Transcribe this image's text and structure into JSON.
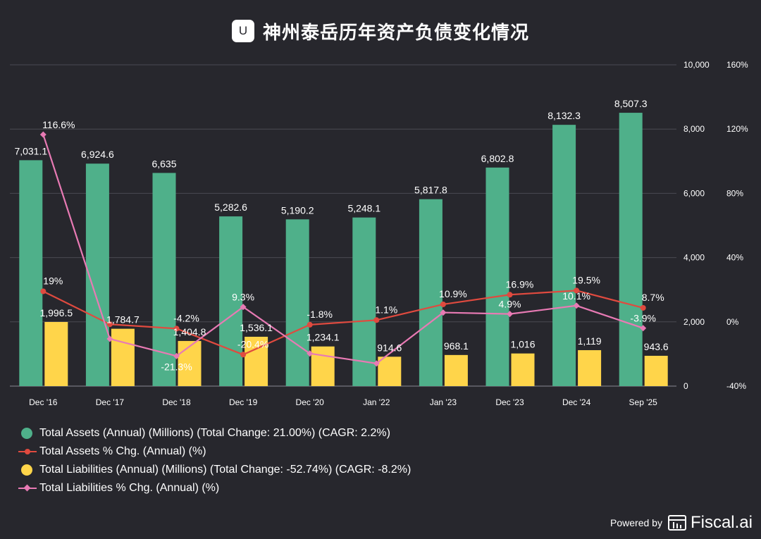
{
  "header": {
    "logo_letter": "U",
    "title": "神州泰岳历年资产负债变化情况"
  },
  "colors": {
    "background": "#27272d",
    "assets_bar": "#4fb08a",
    "liabilities_bar": "#ffd54a",
    "assets_chg_line": "#e04a3f",
    "liabilities_chg_line": "#e87ab4",
    "grid": "#4a4a52"
  },
  "chart_data": {
    "type": "bar",
    "title": "神州泰岳历年资产负债变化情况",
    "categories": [
      "Dec '16",
      "Dec '17",
      "Dec '18",
      "Dec '19",
      "Dec '20",
      "Jan '22",
      "Jan '23",
      "Dec '23",
      "Dec '24",
      "Sep '25"
    ],
    "left_axis": {
      "ylim": [
        0,
        10000
      ],
      "ticks": [
        0,
        2000,
        4000,
        6000,
        8000,
        10000
      ],
      "tick_labels": [
        "0",
        "2,000",
        "4,000",
        "6,000",
        "8,000",
        "10,000"
      ]
    },
    "right_axis": {
      "ylim": [
        -40,
        160
      ],
      "ticks": [
        -40,
        0,
        40,
        80,
        120,
        160
      ],
      "tick_labels": [
        "-40%",
        "0%",
        "40%",
        "80%",
        "120%",
        "160%"
      ]
    },
    "series": [
      {
        "name": "Total Assets (Annual) (Millions) (Total Change: 21.00%) (CAGR: 2.2%)",
        "kind": "bar",
        "axis": "left",
        "color": "#4fb08a",
        "values": [
          7031.1,
          6924.6,
          6635,
          5282.6,
          5190.2,
          5248.1,
          5817.8,
          6802.8,
          8132.3,
          8507.3
        ],
        "labels": [
          "7,031.1",
          "6,924.6",
          "6,635",
          "5,282.6",
          "5,190.2",
          "5,248.1",
          "5,817.8",
          "6,802.8",
          "8,132.3",
          "8,507.3"
        ]
      },
      {
        "name": "Total Assets % Chg. (Annual) (%)",
        "kind": "line",
        "marker": "circle",
        "axis": "right",
        "color": "#e04a3f",
        "values": [
          19,
          -1.5,
          -4.2,
          -20.4,
          -1.8,
          1.1,
          10.9,
          16.9,
          19.5,
          8.7
        ],
        "labels": [
          "19%",
          "",
          "-4.2%",
          "-20.4%",
          "-1.8%",
          "1.1%",
          "10.9%",
          "16.9%",
          "19.5%",
          "8.7%"
        ]
      },
      {
        "name": "Total Liabilities (Annual) (Millions) (Total Change: -52.74%) (CAGR: -8.2%)",
        "kind": "bar",
        "axis": "left",
        "color": "#ffd54a",
        "values": [
          1996.5,
          1784.7,
          1404.8,
          1536.1,
          1234.1,
          914.6,
          968.1,
          1016,
          1119,
          943.6
        ],
        "labels": [
          "1,996.5",
          "1,784.7",
          "1,404.8",
          "1,536.1",
          "1,234.1",
          "914.6",
          "968.1",
          "1,016",
          "1,119",
          "943.6"
        ]
      },
      {
        "name": "Total Liabilities % Chg. (Annual) (%)",
        "kind": "line",
        "marker": "diamond",
        "axis": "right",
        "color": "#e87ab4",
        "values": [
          116.6,
          -10.6,
          -21.3,
          9.3,
          -19.7,
          -25.9,
          5.8,
          4.9,
          10.1,
          -3.9
        ],
        "labels": [
          "116.6%",
          "",
          "-21.3%",
          "9.3%",
          "",
          "",
          "",
          "4.9%",
          "10.1%",
          "-3.9%"
        ]
      }
    ]
  },
  "legend": {
    "items": [
      "Total Assets (Annual) (Millions) (Total Change: 21.00%) (CAGR: 2.2%)",
      "Total Assets % Chg. (Annual) (%)",
      "Total Liabilities (Annual) (Millions) (Total Change: -52.74%) (CAGR: -8.2%)",
      "Total Liabilities % Chg. (Annual) (%)"
    ]
  },
  "footer": {
    "powered_by": "Powered by",
    "brand": "Fiscal.ai"
  }
}
